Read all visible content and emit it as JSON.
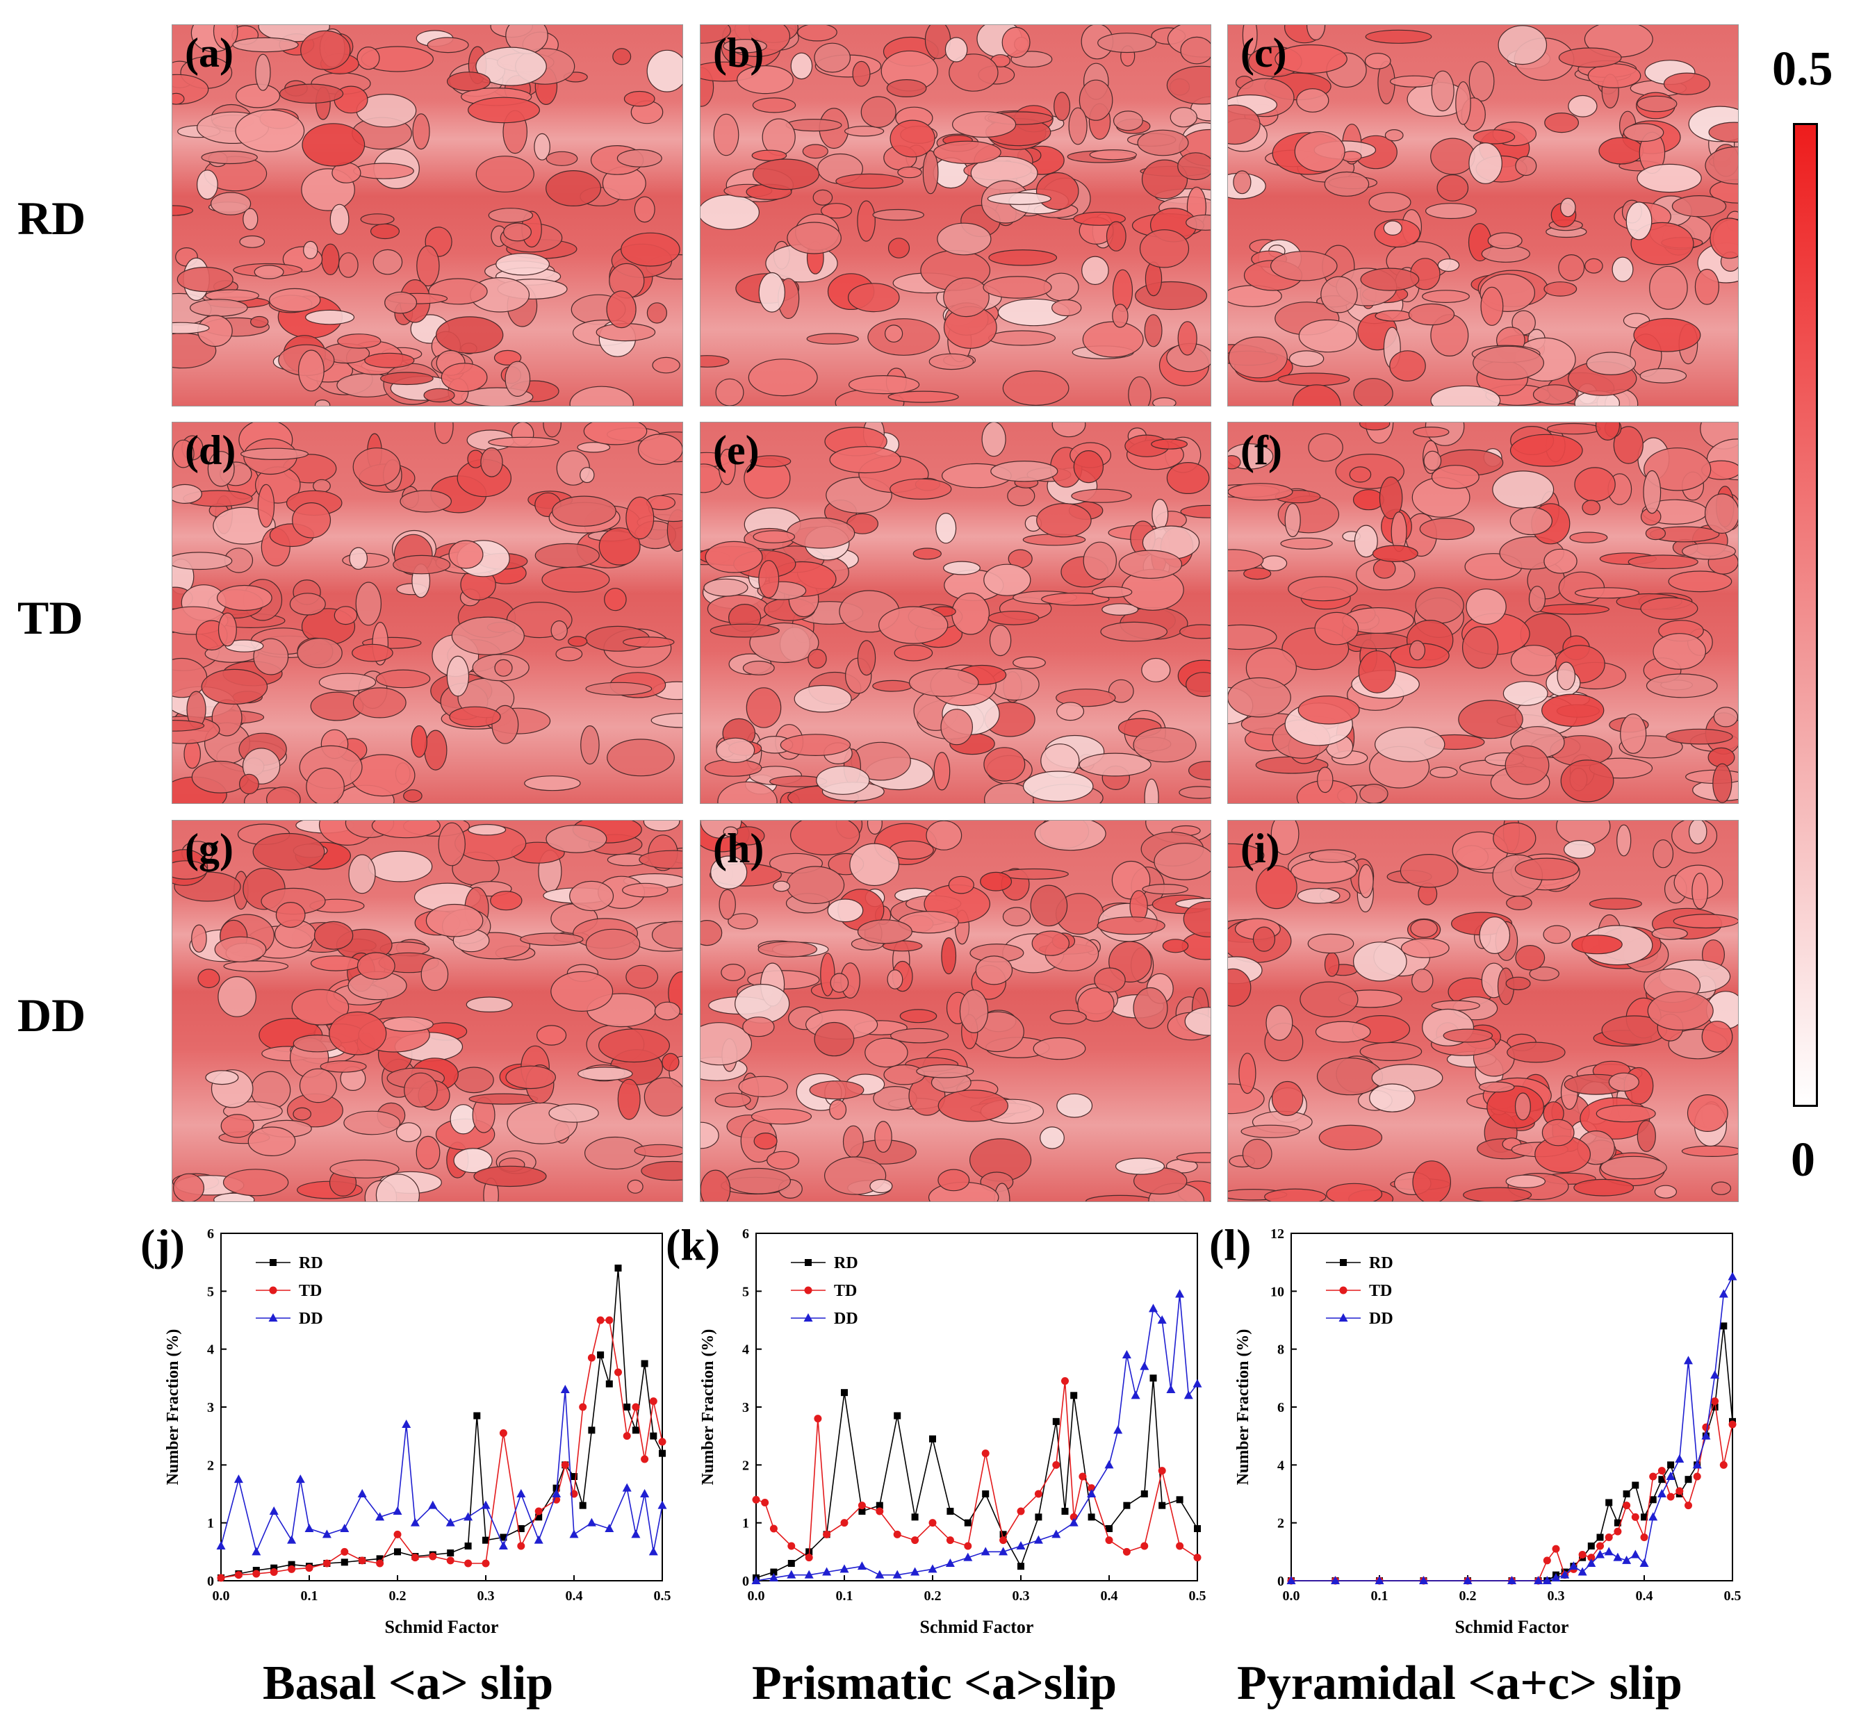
{
  "row_labels": [
    "RD",
    "TD",
    "DD"
  ],
  "map_labels": [
    "(a)",
    "(b)",
    "(c)",
    "(d)",
    "(e)",
    "(f)",
    "(g)",
    "(h)",
    "(i)"
  ],
  "colorbar": {
    "max_label": "0.5",
    "min_label": "0",
    "colors": [
      "#ffffff",
      "#ee1c1c"
    ]
  },
  "plot_labels": [
    "(j)",
    "(k)",
    "(l)"
  ],
  "captions": [
    "Basal <a> slip",
    "Prismatic <a>slip",
    "Pyramidal <a+c> slip"
  ],
  "chart_data": [
    {
      "type": "line",
      "xlabel": "Schmid Factor",
      "ylabel": "Number Fraction (%)",
      "xlim": [
        0,
        0.5
      ],
      "ylim": [
        0,
        6
      ],
      "xticks": [
        0.0,
        0.1,
        0.2,
        0.3,
        0.4,
        0.5
      ],
      "yticks": [
        0,
        1,
        2,
        3,
        4,
        5,
        6
      ],
      "legend_position": "top-left",
      "series": [
        {
          "name": "RD",
          "color": "#000000",
          "marker": "square",
          "x": [
            0.0,
            0.02,
            0.04,
            0.06,
            0.08,
            0.1,
            0.12,
            0.14,
            0.16,
            0.18,
            0.2,
            0.22,
            0.24,
            0.26,
            0.28,
            0.29,
            0.3,
            0.32,
            0.34,
            0.36,
            0.38,
            0.39,
            0.4,
            0.41,
            0.42,
            0.43,
            0.44,
            0.45,
            0.46,
            0.47,
            0.48,
            0.49,
            0.5
          ],
          "y": [
            0.05,
            0.12,
            0.18,
            0.22,
            0.28,
            0.25,
            0.3,
            0.32,
            0.35,
            0.38,
            0.5,
            0.42,
            0.45,
            0.48,
            0.6,
            2.85,
            0.7,
            0.75,
            0.9,
            1.1,
            1.6,
            2.0,
            1.8,
            1.3,
            2.6,
            3.9,
            3.4,
            5.4,
            3.0,
            2.6,
            3.75,
            2.5,
            2.2
          ]
        },
        {
          "name": "TD",
          "color": "#e31a1c",
          "marker": "circle",
          "x": [
            0.0,
            0.02,
            0.04,
            0.06,
            0.08,
            0.1,
            0.12,
            0.14,
            0.16,
            0.18,
            0.2,
            0.22,
            0.24,
            0.26,
            0.28,
            0.3,
            0.32,
            0.34,
            0.36,
            0.38,
            0.39,
            0.4,
            0.41,
            0.42,
            0.43,
            0.44,
            0.45,
            0.46,
            0.47,
            0.48,
            0.49,
            0.5
          ],
          "y": [
            0.05,
            0.1,
            0.12,
            0.15,
            0.2,
            0.22,
            0.3,
            0.5,
            0.35,
            0.3,
            0.8,
            0.4,
            0.42,
            0.35,
            0.3,
            0.3,
            2.55,
            0.6,
            1.2,
            1.4,
            2.0,
            1.5,
            3.0,
            3.85,
            4.5,
            4.5,
            3.6,
            2.5,
            3.0,
            2.1,
            3.1,
            2.4
          ]
        },
        {
          "name": "DD",
          "color": "#1f1fd1",
          "marker": "triangle",
          "x": [
            0.0,
            0.02,
            0.04,
            0.06,
            0.08,
            0.09,
            0.1,
            0.12,
            0.14,
            0.16,
            0.18,
            0.2,
            0.21,
            0.22,
            0.24,
            0.26,
            0.28,
            0.3,
            0.32,
            0.34,
            0.36,
            0.38,
            0.39,
            0.4,
            0.42,
            0.44,
            0.46,
            0.47,
            0.48,
            0.49,
            0.5
          ],
          "y": [
            0.6,
            1.75,
            0.5,
            1.2,
            0.7,
            1.75,
            0.9,
            0.8,
            0.9,
            1.5,
            1.1,
            1.2,
            2.7,
            1.0,
            1.3,
            1.0,
            1.1,
            1.3,
            0.6,
            1.5,
            0.7,
            1.5,
            3.3,
            0.8,
            1.0,
            0.9,
            1.6,
            0.8,
            1.5,
            0.5,
            1.3
          ]
        }
      ]
    },
    {
      "type": "line",
      "xlabel": "Schmid Factor",
      "ylabel": "Number Fraction (%)",
      "xlim": [
        0,
        0.5
      ],
      "ylim": [
        0,
        6
      ],
      "xticks": [
        0.0,
        0.1,
        0.2,
        0.3,
        0.4,
        0.5
      ],
      "yticks": [
        0,
        1,
        2,
        3,
        4,
        5,
        6
      ],
      "legend_position": "top-left",
      "series": [
        {
          "name": "RD",
          "color": "#000000",
          "marker": "square",
          "x": [
            0.0,
            0.02,
            0.04,
            0.06,
            0.08,
            0.1,
            0.12,
            0.14,
            0.16,
            0.18,
            0.2,
            0.22,
            0.24,
            0.26,
            0.28,
            0.3,
            0.32,
            0.34,
            0.35,
            0.36,
            0.38,
            0.4,
            0.42,
            0.44,
            0.45,
            0.46,
            0.48,
            0.5
          ],
          "y": [
            0.05,
            0.15,
            0.3,
            0.5,
            0.8,
            3.25,
            1.2,
            1.3,
            2.85,
            1.1,
            2.45,
            1.2,
            1.0,
            1.5,
            0.8,
            0.25,
            1.1,
            2.75,
            1.2,
            3.2,
            1.1,
            0.9,
            1.3,
            1.5,
            3.5,
            1.3,
            1.4,
            0.9
          ]
        },
        {
          "name": "TD",
          "color": "#e31a1c",
          "marker": "circle",
          "x": [
            0.0,
            0.01,
            0.02,
            0.04,
            0.06,
            0.07,
            0.08,
            0.1,
            0.12,
            0.14,
            0.16,
            0.18,
            0.2,
            0.22,
            0.24,
            0.26,
            0.28,
            0.3,
            0.32,
            0.34,
            0.35,
            0.36,
            0.37,
            0.38,
            0.4,
            0.42,
            0.44,
            0.46,
            0.48,
            0.5
          ],
          "y": [
            1.4,
            1.35,
            0.9,
            0.6,
            0.4,
            2.8,
            0.8,
            1.0,
            1.3,
            1.2,
            0.8,
            0.7,
            1.0,
            0.7,
            0.6,
            2.2,
            0.7,
            1.2,
            1.5,
            2.0,
            3.45,
            1.1,
            1.8,
            1.6,
            0.7,
            0.5,
            0.6,
            1.9,
            0.6,
            0.4
          ]
        },
        {
          "name": "DD",
          "color": "#1f1fd1",
          "marker": "triangle",
          "x": [
            0.0,
            0.02,
            0.04,
            0.06,
            0.08,
            0.1,
            0.12,
            0.14,
            0.16,
            0.18,
            0.2,
            0.22,
            0.24,
            0.26,
            0.28,
            0.3,
            0.32,
            0.34,
            0.36,
            0.38,
            0.4,
            0.41,
            0.42,
            0.43,
            0.44,
            0.45,
            0.46,
            0.47,
            0.48,
            0.49,
            0.5
          ],
          "y": [
            0.0,
            0.05,
            0.1,
            0.1,
            0.15,
            0.2,
            0.25,
            0.1,
            0.1,
            0.15,
            0.2,
            0.3,
            0.4,
            0.5,
            0.5,
            0.6,
            0.7,
            0.8,
            1.0,
            1.5,
            2.0,
            2.6,
            3.9,
            3.2,
            3.7,
            4.7,
            4.5,
            3.3,
            4.95,
            3.2,
            3.4
          ]
        }
      ]
    },
    {
      "type": "line",
      "xlabel": "Schmid Factor",
      "ylabel": "Number Fraction (%)",
      "xlim": [
        0,
        0.5
      ],
      "ylim": [
        0,
        12
      ],
      "xticks": [
        0.0,
        0.1,
        0.2,
        0.3,
        0.4,
        0.5
      ],
      "yticks": [
        0,
        2,
        4,
        6,
        8,
        10,
        12
      ],
      "legend_position": "top-left",
      "series": [
        {
          "name": "RD",
          "color": "#000000",
          "marker": "square",
          "x": [
            0.0,
            0.05,
            0.1,
            0.15,
            0.2,
            0.25,
            0.28,
            0.29,
            0.3,
            0.31,
            0.32,
            0.33,
            0.34,
            0.35,
            0.36,
            0.37,
            0.38,
            0.39,
            0.4,
            0.41,
            0.42,
            0.43,
            0.44,
            0.45,
            0.46,
            0.47,
            0.48,
            0.49,
            0.5
          ],
          "y": [
            0.0,
            0.0,
            0.0,
            0.0,
            0.0,
            0.0,
            0.0,
            0.0,
            0.2,
            0.3,
            0.5,
            0.8,
            1.2,
            1.5,
            2.7,
            2.0,
            3.0,
            3.3,
            2.2,
            2.8,
            3.5,
            4.0,
            3.0,
            3.5,
            4.0,
            5.0,
            6.0,
            8.8,
            5.5
          ]
        },
        {
          "name": "TD",
          "color": "#e31a1c",
          "marker": "circle",
          "x": [
            0.0,
            0.05,
            0.1,
            0.15,
            0.2,
            0.25,
            0.28,
            0.29,
            0.3,
            0.31,
            0.32,
            0.33,
            0.34,
            0.35,
            0.36,
            0.37,
            0.38,
            0.39,
            0.4,
            0.41,
            0.42,
            0.43,
            0.44,
            0.45,
            0.46,
            0.47,
            0.48,
            0.49,
            0.5
          ],
          "y": [
            0.0,
            0.0,
            0.0,
            0.0,
            0.0,
            0.0,
            0.0,
            0.7,
            1.1,
            0.2,
            0.4,
            0.9,
            0.8,
            1.2,
            1.5,
            1.7,
            2.6,
            2.2,
            1.5,
            3.6,
            3.8,
            2.9,
            3.1,
            2.6,
            3.6,
            5.3,
            6.2,
            4.0,
            5.4
          ]
        },
        {
          "name": "DD",
          "color": "#1f1fd1",
          "marker": "triangle",
          "x": [
            0.0,
            0.05,
            0.1,
            0.15,
            0.2,
            0.25,
            0.28,
            0.29,
            0.3,
            0.31,
            0.32,
            0.33,
            0.34,
            0.35,
            0.36,
            0.37,
            0.38,
            0.39,
            0.4,
            0.41,
            0.42,
            0.43,
            0.44,
            0.45,
            0.46,
            0.47,
            0.48,
            0.49,
            0.5
          ],
          "y": [
            0.0,
            0.0,
            0.0,
            0.0,
            0.0,
            0.0,
            0.0,
            0.0,
            0.1,
            0.2,
            0.5,
            0.3,
            0.6,
            0.9,
            1.0,
            0.8,
            0.7,
            0.9,
            0.6,
            2.2,
            3.0,
            3.6,
            4.2,
            7.6,
            4.0,
            5.0,
            7.1,
            9.9,
            10.5
          ]
        }
      ]
    }
  ]
}
